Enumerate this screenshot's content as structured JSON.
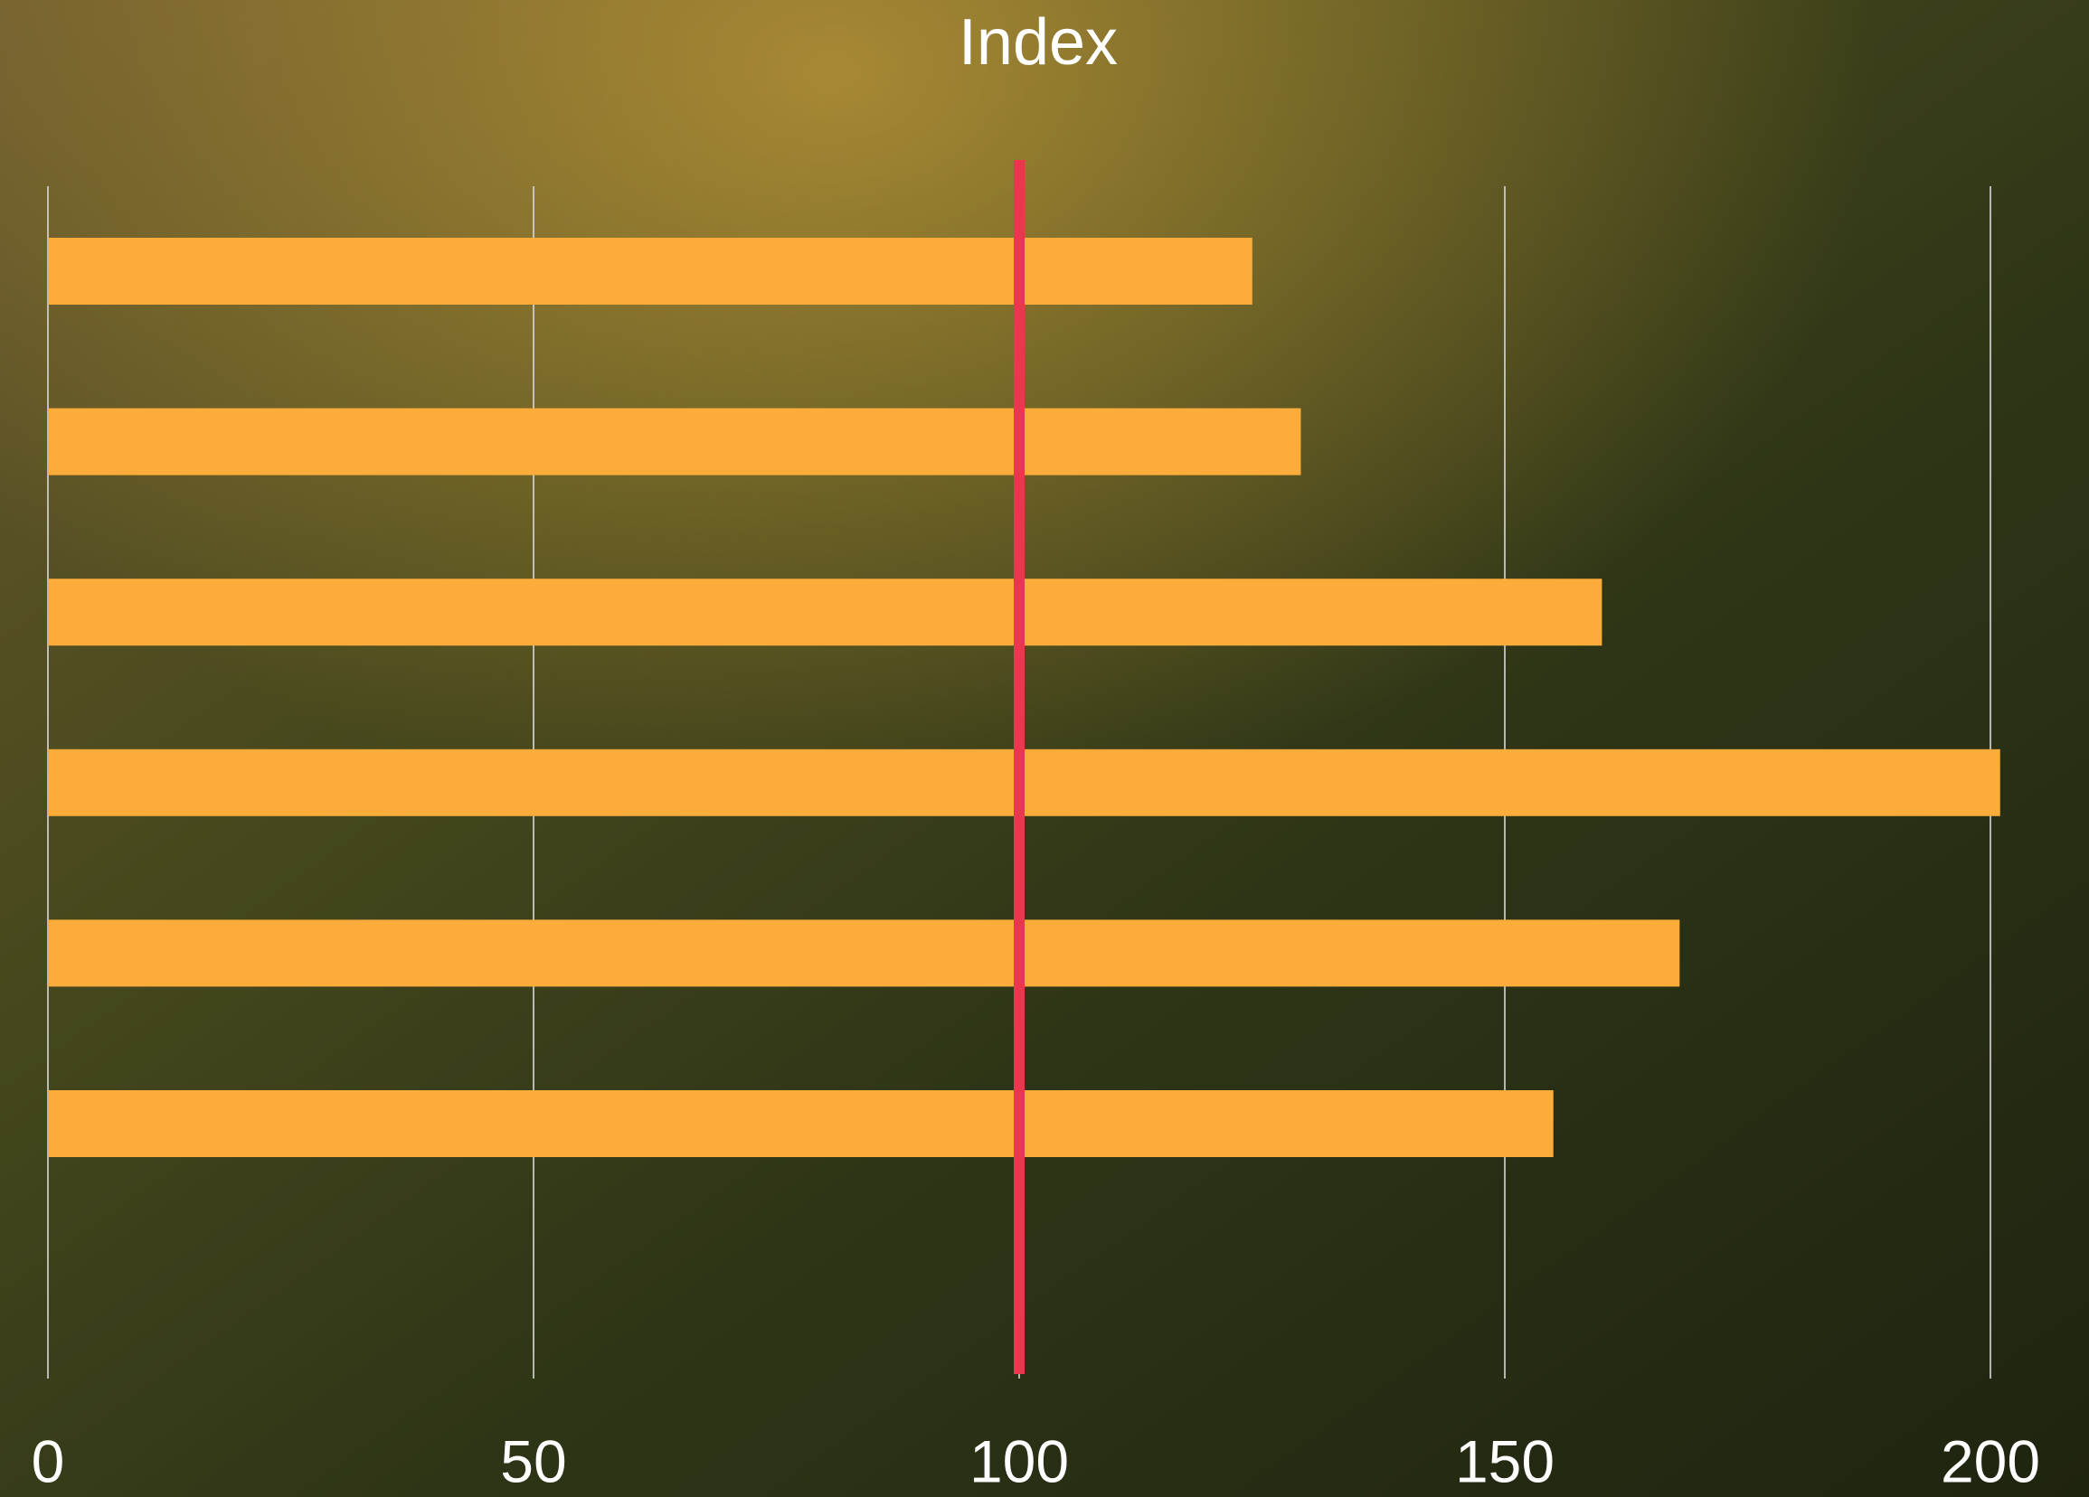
{
  "chart_data": {
    "type": "bar",
    "orientation": "horizontal",
    "title": "Index",
    "categories": [
      null,
      null,
      null,
      null,
      null,
      null
    ],
    "values": [
      124,
      129,
      160,
      201,
      168,
      155
    ],
    "color": "#fbac3b",
    "xlim": [
      0,
      200
    ],
    "xticks": [
      0,
      50,
      100,
      150,
      200
    ],
    "grid": true,
    "reference_line": {
      "value": 100,
      "color": "#e8384f"
    }
  }
}
